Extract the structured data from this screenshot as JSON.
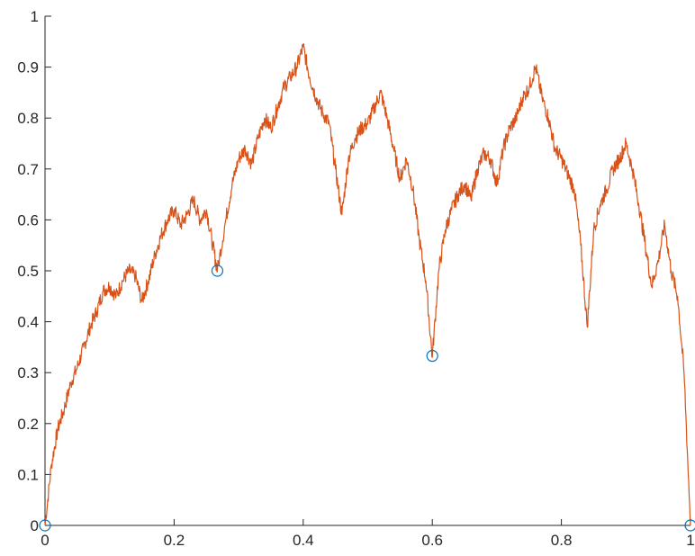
{
  "chart_data": {
    "type": "line",
    "title": "",
    "xlabel": "",
    "ylabel": "",
    "xlim": [
      0,
      1
    ],
    "ylim": [
      0,
      1
    ],
    "x_ticks": [
      0,
      0.2,
      0.4,
      0.6,
      0.8,
      1
    ],
    "x_tick_labels": [
      "0",
      "0.2",
      "0.4",
      "0.6",
      "0.8",
      "1"
    ],
    "y_ticks": [
      0,
      0.1,
      0.2,
      0.3,
      0.4,
      0.5,
      0.6,
      0.7,
      0.8,
      0.9,
      1
    ],
    "y_tick_labels": [
      "0",
      "0.1",
      "0.2",
      "0.3",
      "0.4",
      "0.5",
      "0.6",
      "0.7",
      "0.8",
      "0.9",
      "1"
    ],
    "grid": false,
    "box": "left-bottom",
    "series": [
      {
        "kind": "line",
        "color": "#D95319",
        "x": [
          0,
          0.01,
          0.02,
          0.03,
          0.04,
          0.05,
          0.06,
          0.07,
          0.08,
          0.09,
          0.1,
          0.11,
          0.12,
          0.13,
          0.14,
          0.15,
          0.16,
          0.17,
          0.18,
          0.19,
          0.2,
          0.21,
          0.22,
          0.23,
          0.24,
          0.25,
          0.26,
          0.267,
          0.28,
          0.29,
          0.3,
          0.31,
          0.32,
          0.33,
          0.34,
          0.35,
          0.36,
          0.37,
          0.38,
          0.39,
          0.4,
          0.41,
          0.42,
          0.43,
          0.44,
          0.45,
          0.46,
          0.47,
          0.48,
          0.49,
          0.5,
          0.51,
          0.52,
          0.53,
          0.54,
          0.55,
          0.56,
          0.57,
          0.58,
          0.59,
          0.6,
          0.61,
          0.62,
          0.63,
          0.64,
          0.65,
          0.66,
          0.67,
          0.68,
          0.69,
          0.7,
          0.71,
          0.72,
          0.73,
          0.74,
          0.75,
          0.76,
          0.77,
          0.78,
          0.79,
          0.8,
          0.81,
          0.82,
          0.83,
          0.84,
          0.85,
          0.86,
          0.87,
          0.88,
          0.89,
          0.9,
          0.91,
          0.92,
          0.93,
          0.94,
          0.95,
          0.96,
          0.97,
          0.98,
          0.99,
          1
        ],
        "y": [
          0,
          0.12,
          0.19,
          0.23,
          0.28,
          0.31,
          0.35,
          0.39,
          0.42,
          0.46,
          0.47,
          0.45,
          0.48,
          0.5,
          0.49,
          0.44,
          0.48,
          0.53,
          0.57,
          0.6,
          0.62,
          0.59,
          0.61,
          0.64,
          0.6,
          0.62,
          0.55,
          0.5,
          0.6,
          0.67,
          0.72,
          0.74,
          0.71,
          0.76,
          0.8,
          0.78,
          0.82,
          0.86,
          0.88,
          0.9,
          0.94,
          0.88,
          0.84,
          0.81,
          0.79,
          0.7,
          0.61,
          0.72,
          0.76,
          0.78,
          0.79,
          0.82,
          0.85,
          0.8,
          0.74,
          0.68,
          0.72,
          0.66,
          0.56,
          0.48,
          0.33,
          0.5,
          0.58,
          0.62,
          0.65,
          0.67,
          0.64,
          0.7,
          0.73,
          0.72,
          0.67,
          0.74,
          0.78,
          0.8,
          0.84,
          0.86,
          0.9,
          0.84,
          0.8,
          0.74,
          0.72,
          0.69,
          0.66,
          0.55,
          0.39,
          0.58,
          0.63,
          0.66,
          0.7,
          0.72,
          0.75,
          0.7,
          0.63,
          0.55,
          0.47,
          0.52,
          0.59,
          0.5,
          0.45,
          0.3,
          0
        ]
      },
      {
        "kind": "scatter",
        "marker": "circle",
        "color": "#0072BD",
        "x": [
          0,
          0.267,
          0.6,
          1
        ],
        "y": [
          0,
          0.5,
          0.333,
          0
        ]
      }
    ]
  }
}
